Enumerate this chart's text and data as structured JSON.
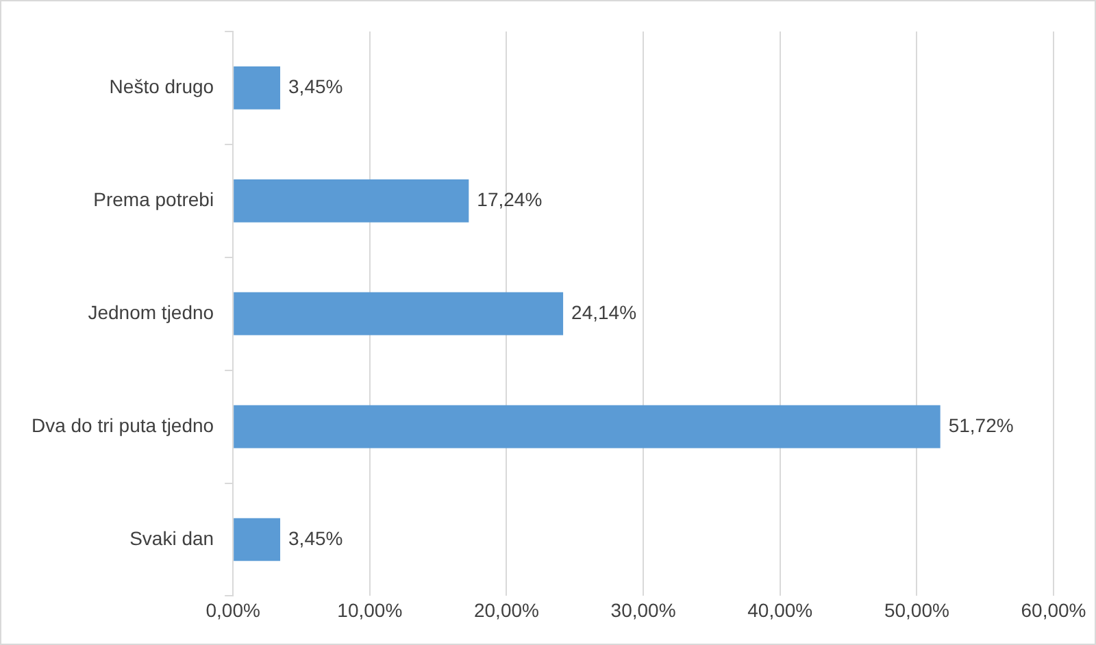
{
  "chart_data": {
    "type": "bar",
    "orientation": "horizontal",
    "categories": [
      "Nešto drugo",
      "Prema potrebi",
      "Jednom tjedno",
      "Dva do tri puta tjedno",
      "Svaki dan"
    ],
    "values": [
      3.45,
      17.24,
      24.14,
      51.72,
      3.45
    ],
    "value_labels": [
      "3,45%",
      "17,24%",
      "24,14%",
      "51,72%",
      "3,45%"
    ],
    "color": "#5b9bd5",
    "xlim": [
      0,
      60
    ],
    "xticks": [
      {
        "value": 0,
        "label": "0,00%"
      },
      {
        "value": 10,
        "label": "10,00%"
      },
      {
        "value": 20,
        "label": "20,00%"
      },
      {
        "value": 30,
        "label": "30,00%"
      },
      {
        "value": 40,
        "label": "40,00%"
      },
      {
        "value": 50,
        "label": "50,00%"
      },
      {
        "value": 60,
        "label": "60,00%"
      }
    ],
    "grid": "x"
  }
}
